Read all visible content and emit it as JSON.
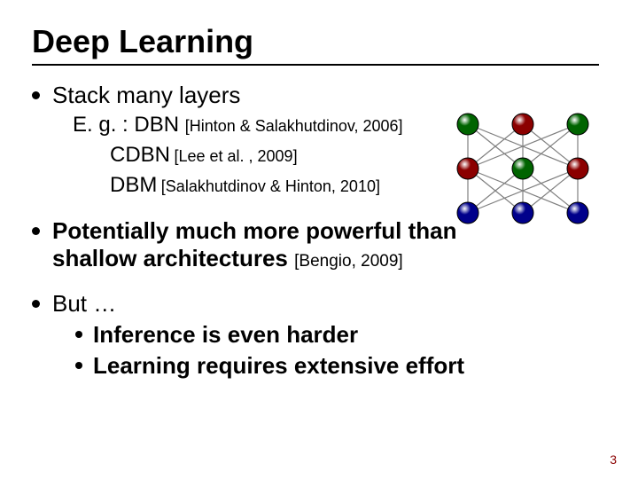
{
  "title": "Deep Learning",
  "bullets": {
    "b1": "Stack many layers",
    "b1_sub": {
      "eg_prefix": "E. g. : ",
      "dbn": "DBN",
      "dbn_cite": "[Hinton & Salakhutdinov, 2006]",
      "cdbn": "CDBN",
      "cdbn_cite": "[Lee et al. , 2009]",
      "dbm": "DBM",
      "dbm_cite": "[Salakhutdinov & Hinton, 2010]"
    },
    "b2_line1": "Potentially much more powerful than",
    "b2_line2": "shallow architectures",
    "b2_cite": "[Bengio, 2009]",
    "b3": "But …",
    "b3_sub1": "Inference is even harder",
    "b3_sub2": "Learning requires extensive effort"
  },
  "page_number": "3",
  "network": {
    "layers": 3,
    "nodes_per_layer": 3,
    "colors": {
      "top": [
        "#006400",
        "#8b0000",
        "#006400"
      ],
      "middle": [
        "#8b0000",
        "#006400",
        "#8b0000"
      ],
      "bottom": [
        "#00008b",
        "#00008b",
        "#00008b"
      ]
    },
    "node_radius": 12,
    "x_positions": [
      28,
      90,
      152
    ],
    "y_positions": [
      16,
      66,
      116
    ],
    "edge_stroke": "#808080",
    "edge_width": 1.2,
    "node_stroke": "#000000",
    "node_stroke_width": 1
  }
}
